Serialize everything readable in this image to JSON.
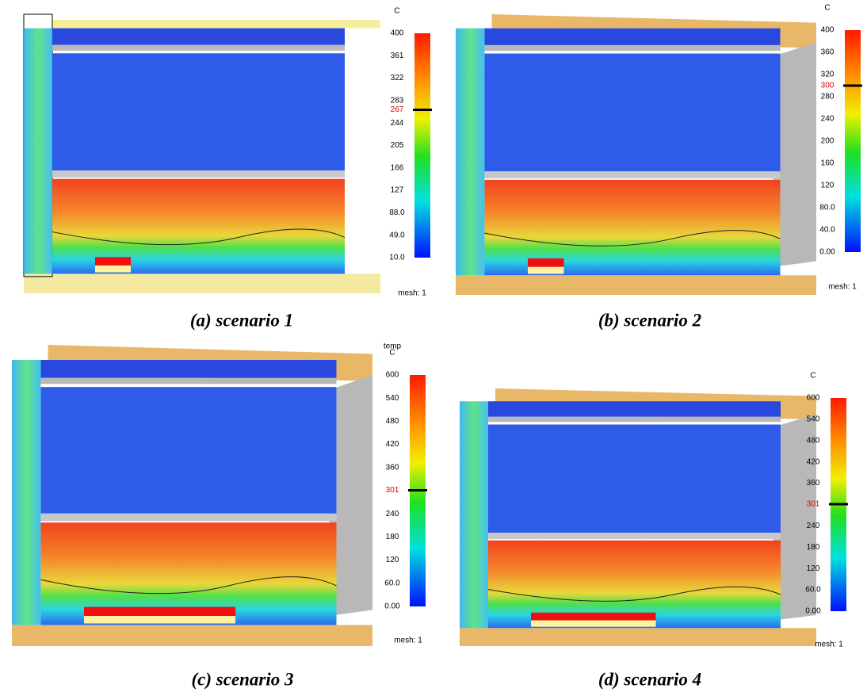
{
  "panels": [
    {
      "caption": "(a) scenario 1",
      "unit": "C",
      "mesh": "mesh: 1",
      "ticks": [
        "400",
        "361",
        "322",
        "283",
        "244",
        "205",
        "166",
        "127",
        "88.0",
        "49.0",
        "10.0"
      ],
      "marker": "267"
    },
    {
      "caption": "(b) scenario 2",
      "unit": "C",
      "mesh": "mesh: 1",
      "ticks": [
        "400",
        "360",
        "320",
        "280",
        "240",
        "200",
        "160",
        "120",
        "80.0",
        "40.0",
        "0.00"
      ],
      "marker": "300"
    },
    {
      "caption": "(c) scenario 3",
      "quantity": "temp",
      "unit": "C",
      "mesh": "mesh: 1",
      "ticks": [
        "600",
        "540",
        "480",
        "420",
        "360",
        "240",
        "180",
        "120",
        "60.0",
        "0.00"
      ],
      "marker": "301"
    },
    {
      "caption": "(d) scenario 4",
      "unit": "C",
      "mesh": "mesh: 1",
      "ticks": [
        "600",
        "540",
        "480",
        "420",
        "360",
        "240",
        "180",
        "120",
        "60.0",
        "0.00"
      ],
      "marker": "301"
    }
  ]
}
